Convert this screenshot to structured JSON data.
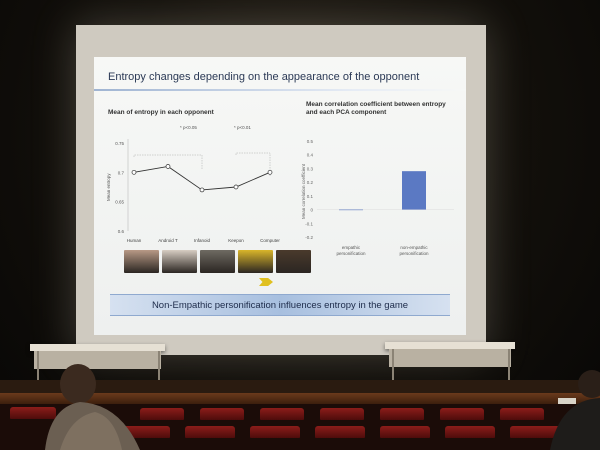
{
  "slide": {
    "title": "Entropy changes depending on the appearance of the opponent",
    "left_panel_title": "Mean of entropy in each opponent",
    "right_panel_title": "Mean correlation coefficient between entropy and each PCA component",
    "banner": "Non-Empathic personification influences entropy in the game",
    "sig_1": "* p<0.05",
    "sig_2": "* p<0.01"
  },
  "chart_data": [
    {
      "type": "line",
      "title": "Mean of entropy in each opponent",
      "ylabel": "Mean entropy",
      "categories": [
        "Human",
        "Android T",
        "Infanoid",
        "Keepon",
        "Computer"
      ],
      "values": [
        0.7,
        0.71,
        0.67,
        0.675,
        0.7
      ],
      "ylim": [
        0.6,
        0.75
      ],
      "yticks": [
        "0.75",
        "0.7",
        "0.65",
        "0.6"
      ]
    },
    {
      "type": "bar",
      "ylabel": "Mean correlation coefficient",
      "categories": [
        "empathic personification",
        "non-empathic personification"
      ],
      "category_labels": [
        [
          "empathic",
          "personification"
        ],
        [
          "non-empathic",
          "personification"
        ]
      ],
      "values": [
        0.0,
        0.28
      ],
      "ylim": [
        -0.2,
        0.5
      ],
      "yticks": [
        "0.5",
        "0.4",
        "0.3",
        "0.2",
        "0.1",
        "0",
        "-0.1",
        "-0.2"
      ],
      "bar_color": "#5b79c3"
    }
  ],
  "thumbnails": [
    {
      "name": "Human",
      "color": "#b89a86"
    },
    {
      "name": "Android T",
      "color": "#d7cdc2"
    },
    {
      "name": "Infanoid",
      "color": "#6e6a62"
    },
    {
      "name": "Keepon",
      "color": "#d9b52a"
    },
    {
      "name": "Computer",
      "color": "#4a3a2c"
    }
  ]
}
